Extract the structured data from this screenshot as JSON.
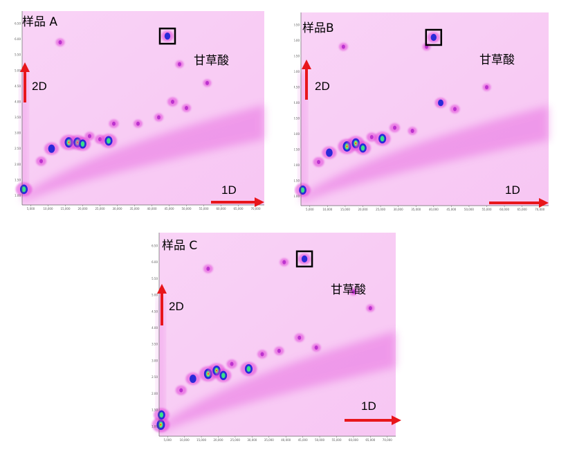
{
  "chart_data": [
    {
      "type": "heatmap",
      "title": "样品 A",
      "xlabel": "1D",
      "ylabel": "2D",
      "annotation": "甘草酸",
      "x_ticks": [
        "5,000",
        "10,000",
        "15,000",
        "20,000",
        "25,000",
        "30,000",
        "35,000",
        "40,000",
        "45,000",
        "50,000",
        "55,000",
        "60,000",
        "65,000",
        "70,000"
      ],
      "y_ticks": [
        "1.00",
        "1.50",
        "2.00",
        "2.50",
        "3.00",
        "3.50",
        "4.00",
        "4.50",
        "5.00",
        "5.50",
        "6.00",
        "6.50"
      ],
      "xlim": [
        2500,
        72500
      ],
      "ylim": [
        0.7,
        6.9
      ],
      "colors": {
        "background": "#f7c6f3",
        "low": "#e040d8",
        "mid": "#2a2ad8",
        "high": "#39e08a",
        "peak": "#f0e030"
      },
      "peaks": [
        {
          "x": 3000,
          "y": 1.2,
          "i": 0.9
        },
        {
          "x": 8000,
          "y": 2.1,
          "i": 0.45
        },
        {
          "x": 11000,
          "y": 2.5,
          "i": 0.75
        },
        {
          "x": 16000,
          "y": 2.7,
          "i": 1.0
        },
        {
          "x": 18500,
          "y": 2.7,
          "i": 0.95
        },
        {
          "x": 20000,
          "y": 2.65,
          "i": 0.85
        },
        {
          "x": 22000,
          "y": 2.9,
          "i": 0.4
        },
        {
          "x": 25000,
          "y": 2.8,
          "i": 0.45
        },
        {
          "x": 27500,
          "y": 2.75,
          "i": 0.9
        },
        {
          "x": 29000,
          "y": 3.3,
          "i": 0.4
        },
        {
          "x": 36000,
          "y": 3.3,
          "i": 0.35
        },
        {
          "x": 42000,
          "y": 3.5,
          "i": 0.35
        },
        {
          "x": 46000,
          "y": 4.0,
          "i": 0.45
        },
        {
          "x": 50000,
          "y": 3.8,
          "i": 0.35
        },
        {
          "x": 44500,
          "y": 6.1,
          "i": 0.6
        },
        {
          "x": 13500,
          "y": 5.9,
          "i": 0.35
        },
        {
          "x": 48000,
          "y": 5.2,
          "i": 0.3
        },
        {
          "x": 56000,
          "y": 4.6,
          "i": 0.3
        }
      ],
      "marked_peak": {
        "x": 44500,
        "y": 6.1
      }
    },
    {
      "type": "heatmap",
      "title": "样品B",
      "xlabel": "1D",
      "ylabel": "2D",
      "annotation": "甘草酸",
      "x_ticks": [
        "5,000",
        "10,000",
        "15,000",
        "20,000",
        "25,000",
        "30,000",
        "35,000",
        "40,000",
        "45,000",
        "50,000",
        "55,000",
        "60,000",
        "65,000",
        "70,000"
      ],
      "y_ticks": [
        "1.00",
        "1.50",
        "2.00",
        "2.50",
        "3.00",
        "3.50",
        "4.00",
        "4.50",
        "5.00",
        "5.50",
        "6.00",
        "6.50"
      ],
      "xlim": [
        2500,
        72500
      ],
      "ylim": [
        0.7,
        6.9
      ],
      "colors": {
        "background": "#f7c6f3",
        "low": "#e040d8",
        "mid": "#2a2ad8",
        "high": "#39e08a",
        "peak": "#f0e030"
      },
      "peaks": [
        {
          "x": 3000,
          "y": 1.2,
          "i": 0.85
        },
        {
          "x": 7500,
          "y": 2.1,
          "i": 0.5
        },
        {
          "x": 10500,
          "y": 2.4,
          "i": 0.75
        },
        {
          "x": 15500,
          "y": 2.6,
          "i": 1.0
        },
        {
          "x": 18000,
          "y": 2.7,
          "i": 0.95
        },
        {
          "x": 20000,
          "y": 2.55,
          "i": 0.85
        },
        {
          "x": 22500,
          "y": 2.9,
          "i": 0.45
        },
        {
          "x": 25500,
          "y": 2.85,
          "i": 0.9
        },
        {
          "x": 29000,
          "y": 3.2,
          "i": 0.45
        },
        {
          "x": 34000,
          "y": 3.1,
          "i": 0.35
        },
        {
          "x": 42000,
          "y": 4.0,
          "i": 0.55
        },
        {
          "x": 46000,
          "y": 3.8,
          "i": 0.4
        },
        {
          "x": 40000,
          "y": 6.1,
          "i": 0.6
        },
        {
          "x": 14500,
          "y": 5.8,
          "i": 0.35
        },
        {
          "x": 38000,
          "y": 5.8,
          "i": 0.3
        },
        {
          "x": 55000,
          "y": 4.5,
          "i": 0.3
        }
      ],
      "marked_peak": {
        "x": 40000,
        "y": 6.1
      }
    },
    {
      "type": "heatmap",
      "title": "样品 C",
      "xlabel": "1D",
      "ylabel": "2D",
      "annotation": "甘草酸",
      "x_ticks": [
        "5,000",
        "10,000",
        "15,000",
        "20,000",
        "25,000",
        "30,000",
        "35,000",
        "40,000",
        "45,000",
        "50,000",
        "55,000",
        "60,000",
        "65,000",
        "70,000"
      ],
      "y_ticks": [
        "1.00",
        "1.50",
        "2.00",
        "2.50",
        "3.00",
        "3.50",
        "4.00",
        "4.50",
        "5.00",
        "5.50",
        "6.00",
        "6.50"
      ],
      "xlim": [
        2500,
        72500
      ],
      "ylim": [
        0.7,
        6.9
      ],
      "colors": {
        "background": "#f7c6f3",
        "low": "#e040d8",
        "mid": "#2a2ad8",
        "high": "#39e08a",
        "peak": "#f0e030"
      },
      "peaks": [
        {
          "x": 3000,
          "y": 1.05,
          "i": 1.0
        },
        {
          "x": 3200,
          "y": 1.35,
          "i": 0.85
        },
        {
          "x": 9000,
          "y": 2.1,
          "i": 0.5
        },
        {
          "x": 12500,
          "y": 2.45,
          "i": 0.75
        },
        {
          "x": 17000,
          "y": 2.6,
          "i": 1.0
        },
        {
          "x": 19500,
          "y": 2.7,
          "i": 0.95
        },
        {
          "x": 21500,
          "y": 2.55,
          "i": 0.85
        },
        {
          "x": 24000,
          "y": 2.9,
          "i": 0.45
        },
        {
          "x": 29000,
          "y": 2.75,
          "i": 0.9
        },
        {
          "x": 33000,
          "y": 3.2,
          "i": 0.4
        },
        {
          "x": 38000,
          "y": 3.3,
          "i": 0.4
        },
        {
          "x": 44000,
          "y": 3.7,
          "i": 0.4
        },
        {
          "x": 49000,
          "y": 3.4,
          "i": 0.35
        },
        {
          "x": 45500,
          "y": 6.1,
          "i": 0.6
        },
        {
          "x": 39500,
          "y": 6.0,
          "i": 0.35
        },
        {
          "x": 17000,
          "y": 5.8,
          "i": 0.4
        },
        {
          "x": 65000,
          "y": 4.6,
          "i": 0.3
        },
        {
          "x": 60000,
          "y": 5.1,
          "i": 0.3
        }
      ],
      "marked_peak": {
        "x": 45500,
        "y": 6.1
      }
    }
  ]
}
